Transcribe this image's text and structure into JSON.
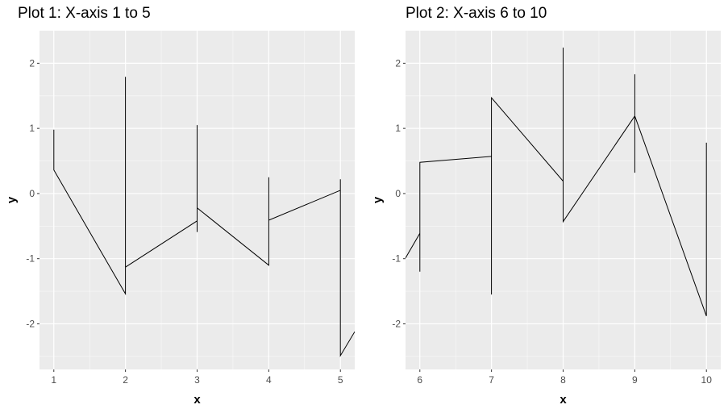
{
  "chart_data": [
    {
      "type": "line",
      "title": "Plot 1: X-axis 1 to 5",
      "xlabel": "x",
      "ylabel": "y",
      "xlim": [
        0.8,
        5.2
      ],
      "ylim": [
        -2.7,
        2.5
      ],
      "x_ticks": [
        1,
        2,
        3,
        4,
        5
      ],
      "y_ticks": [
        -2,
        -1,
        0,
        1,
        2
      ],
      "grid": true,
      "background": "#ebebeb",
      "line_color": "#000000",
      "segments_description": "Path of connected line segments; vertical lines at integer x",
      "points": [
        {
          "x": 1,
          "y": 0.98
        },
        {
          "x": 1,
          "y": 0.36
        },
        {
          "x": 2,
          "y": -1.54
        },
        {
          "x": 2,
          "y": 1.79
        },
        {
          "x": 2,
          "y": -1.13
        },
        {
          "x": 3,
          "y": -0.42
        },
        {
          "x": 3,
          "y": 1.05
        },
        {
          "x": 3,
          "y": -0.59
        },
        {
          "x": 3,
          "y": -0.22
        },
        {
          "x": 4,
          "y": -1.1
        },
        {
          "x": 4,
          "y": 0.25
        },
        {
          "x": 4,
          "y": -0.41
        },
        {
          "x": 5,
          "y": 0.05
        },
        {
          "x": 5,
          "y": 0.22
        },
        {
          "x": 5,
          "y": -2.49
        },
        {
          "x": 5.2,
          "y": -2.12
        }
      ]
    },
    {
      "type": "line",
      "title": "Plot 2: X-axis 6 to 10",
      "xlabel": "x",
      "ylabel": "y",
      "xlim": [
        5.8,
        10.2
      ],
      "ylim": [
        -2.7,
        2.5
      ],
      "x_ticks": [
        6,
        7,
        8,
        9,
        10
      ],
      "y_ticks": [
        -2,
        -1,
        0,
        1,
        2
      ],
      "grid": true,
      "background": "#ebebeb",
      "line_color": "#000000",
      "points": [
        {
          "x": 5.8,
          "y": -0.99
        },
        {
          "x": 6,
          "y": -0.61
        },
        {
          "x": 6,
          "y": -1.2
        },
        {
          "x": 6,
          "y": 0.48
        },
        {
          "x": 7,
          "y": 0.57
        },
        {
          "x": 7,
          "y": -1.55
        },
        {
          "x": 7,
          "y": 1.47
        },
        {
          "x": 8,
          "y": 0.19
        },
        {
          "x": 8,
          "y": 2.24
        },
        {
          "x": 8,
          "y": -0.43
        },
        {
          "x": 9,
          "y": 1.19
        },
        {
          "x": 9,
          "y": 1.83
        },
        {
          "x": 9,
          "y": 0.32
        },
        {
          "x": 9,
          "y": 1.19
        },
        {
          "x": 10,
          "y": -1.88
        },
        {
          "x": 10,
          "y": 0.78
        }
      ]
    }
  ],
  "panels": [
    {
      "title": "Plot 1: X-axis 1 to 5",
      "xlabel": "x",
      "ylabel": "y"
    },
    {
      "title": "Plot 2: X-axis 6 to 10",
      "xlabel": "x",
      "ylabel": "y"
    }
  ]
}
